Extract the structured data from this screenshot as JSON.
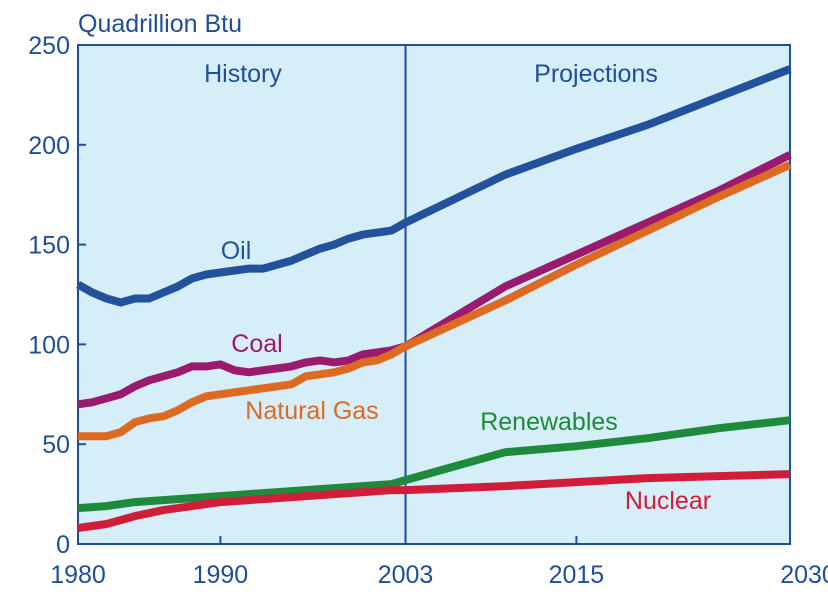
{
  "chart_data": {
    "type": "line",
    "ylabel": "Quadrillion Btu",
    "xlim": [
      1980,
      2030
    ],
    "ylim": [
      0,
      250
    ],
    "x_ticks": [
      1980,
      1990,
      2003,
      2015,
      2030
    ],
    "y_ticks": [
      0,
      50,
      100,
      150,
      200,
      250
    ],
    "divider_year": 2003,
    "region_labels": {
      "history": "History",
      "projections": "Projections"
    },
    "grid": false,
    "legend": "inline labels",
    "colors": {
      "plot_background": "#d5eef7",
      "axis": "#1f4e9a",
      "text": "#1f4e9a"
    },
    "series": [
      {
        "name": "Oil",
        "color": "#23519b",
        "points": [
          [
            1980,
            130
          ],
          [
            1981,
            126
          ],
          [
            1982,
            123
          ],
          [
            1983,
            121
          ],
          [
            1984,
            123
          ],
          [
            1985,
            123
          ],
          [
            1986,
            126
          ],
          [
            1987,
            129
          ],
          [
            1988,
            133
          ],
          [
            1989,
            135
          ],
          [
            1990,
            136
          ],
          [
            1991,
            137
          ],
          [
            1992,
            138
          ],
          [
            1993,
            138
          ],
          [
            1994,
            140
          ],
          [
            1995,
            142
          ],
          [
            1996,
            145
          ],
          [
            1997,
            148
          ],
          [
            1998,
            150
          ],
          [
            1999,
            153
          ],
          [
            2000,
            155
          ],
          [
            2001,
            156
          ],
          [
            2002,
            157
          ],
          [
            2003,
            161
          ],
          [
            2010,
            185
          ],
          [
            2015,
            198
          ],
          [
            2020,
            210
          ],
          [
            2025,
            224
          ],
          [
            2030,
            238
          ]
        ]
      },
      {
        "name": "Coal",
        "color": "#9a1a6e",
        "points": [
          [
            1980,
            70
          ],
          [
            1981,
            71
          ],
          [
            1982,
            73
          ],
          [
            1983,
            75
          ],
          [
            1984,
            79
          ],
          [
            1985,
            82
          ],
          [
            1986,
            84
          ],
          [
            1987,
            86
          ],
          [
            1988,
            89
          ],
          [
            1989,
            89
          ],
          [
            1990,
            90
          ],
          [
            1991,
            87
          ],
          [
            1992,
            86
          ],
          [
            1993,
            87
          ],
          [
            1994,
            88
          ],
          [
            1995,
            89
          ],
          [
            1996,
            91
          ],
          [
            1997,
            92
          ],
          [
            1998,
            91
          ],
          [
            1999,
            92
          ],
          [
            2000,
            95
          ],
          [
            2001,
            96
          ],
          [
            2002,
            97
          ],
          [
            2003,
            99
          ],
          [
            2010,
            129
          ],
          [
            2015,
            145
          ],
          [
            2020,
            161
          ],
          [
            2025,
            177
          ],
          [
            2030,
            195
          ]
        ]
      },
      {
        "name": "Natural Gas",
        "color": "#dd6a22",
        "points": [
          [
            1980,
            54
          ],
          [
            1981,
            54
          ],
          [
            1982,
            54
          ],
          [
            1983,
            56
          ],
          [
            1984,
            61
          ],
          [
            1985,
            63
          ],
          [
            1986,
            64
          ],
          [
            1987,
            67
          ],
          [
            1988,
            71
          ],
          [
            1989,
            74
          ],
          [
            1990,
            75
          ],
          [
            1991,
            76
          ],
          [
            1992,
            77
          ],
          [
            1993,
            78
          ],
          [
            1994,
            79
          ],
          [
            1995,
            80
          ],
          [
            1996,
            84
          ],
          [
            1997,
            85
          ],
          [
            1998,
            86
          ],
          [
            1999,
            88
          ],
          [
            2000,
            91
          ],
          [
            2001,
            92
          ],
          [
            2002,
            95
          ],
          [
            2003,
            99
          ],
          [
            2010,
            122
          ],
          [
            2015,
            140
          ],
          [
            2020,
            157
          ],
          [
            2025,
            174
          ],
          [
            2030,
            190
          ]
        ]
      },
      {
        "name": "Renewables",
        "color": "#1f8a3b",
        "points": [
          [
            1980,
            18
          ],
          [
            1982,
            19
          ],
          [
            1984,
            21
          ],
          [
            1986,
            22
          ],
          [
            1988,
            23
          ],
          [
            1990,
            24
          ],
          [
            1992,
            25
          ],
          [
            1994,
            26
          ],
          [
            1996,
            27
          ],
          [
            1998,
            28
          ],
          [
            2000,
            29
          ],
          [
            2002,
            30
          ],
          [
            2003,
            32
          ],
          [
            2010,
            46
          ],
          [
            2015,
            49
          ],
          [
            2020,
            53
          ],
          [
            2025,
            58
          ],
          [
            2030,
            62
          ]
        ]
      },
      {
        "name": "Nuclear",
        "color": "#d01e3a",
        "points": [
          [
            1980,
            8
          ],
          [
            1982,
            10
          ],
          [
            1984,
            14
          ],
          [
            1986,
            17
          ],
          [
            1988,
            19
          ],
          [
            1990,
            21
          ],
          [
            1992,
            22
          ],
          [
            1994,
            23
          ],
          [
            1996,
            24
          ],
          [
            1998,
            25
          ],
          [
            2000,
            26
          ],
          [
            2002,
            27
          ],
          [
            2003,
            27
          ],
          [
            2010,
            29
          ],
          [
            2015,
            31
          ],
          [
            2020,
            33
          ],
          [
            2025,
            34
          ],
          [
            2030,
            35
          ]
        ]
      }
    ]
  }
}
